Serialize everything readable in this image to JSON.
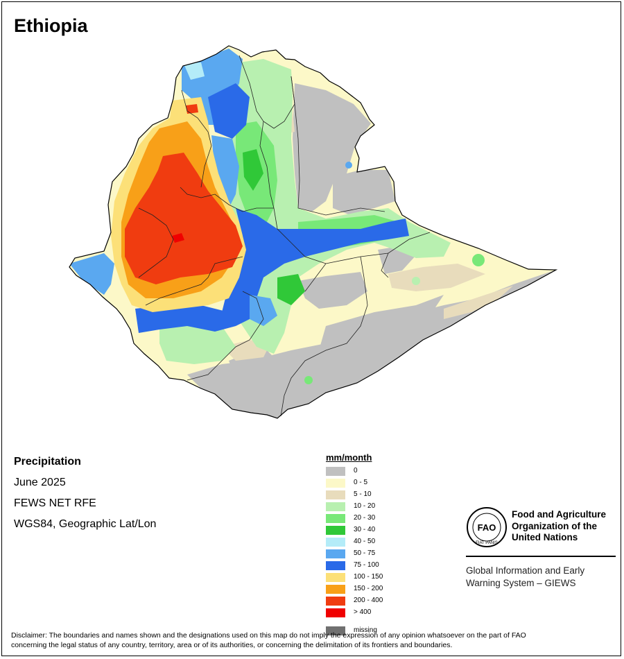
{
  "map": {
    "title": "Ethiopia",
    "variable": "Precipitation",
    "period": "June 2025",
    "source": "FEWS NET RFE",
    "projection": "WGS84, Geographic Lat/Lon"
  },
  "legend": {
    "title": "mm/month",
    "items": [
      {
        "label": "0",
        "color": "#c0c0c0"
      },
      {
        "label": "0 - 5",
        "color": "#fcf8c8"
      },
      {
        "label": "5 - 10",
        "color": "#e8dcbc"
      },
      {
        "label": "10 - 20",
        "color": "#b8f0b0"
      },
      {
        "label": "20 - 30",
        "color": "#78e878"
      },
      {
        "label": "30 - 40",
        "color": "#30c838"
      },
      {
        "label": "40 - 50",
        "color": "#b4ecf8"
      },
      {
        "label": "50 - 75",
        "color": "#5aa8f0"
      },
      {
        "label": "75 - 100",
        "color": "#2a6ae8"
      },
      {
        "label": "100 - 150",
        "color": "#fce078"
      },
      {
        "label": "150 - 200",
        "color": "#f8a018"
      },
      {
        "label": "200 - 400",
        "color": "#f03c10"
      },
      {
        "label": "> 400",
        "color": "#f00000"
      },
      {
        "label": "missing",
        "color": "#707070"
      }
    ]
  },
  "organization": {
    "name_line1": "Food and Agriculture",
    "name_line2": "Organization of the",
    "name_line3": "United Nations",
    "logo_text": "FAO",
    "logo_motto": "FIAT PANIS",
    "system_line1": "Global Information and Early",
    "system_line2": "Warning System – GIEWS"
  },
  "disclaimer": {
    "line1": "Disclaimer: The boundaries and names shown and the designations used on this map do not imply the expression of any opinion whatsoever on the part of FAO",
    "line2": "concerning the legal status of any country, territory, area or of its authorities, or concerning the delimitation of its frontiers and boundaries."
  }
}
